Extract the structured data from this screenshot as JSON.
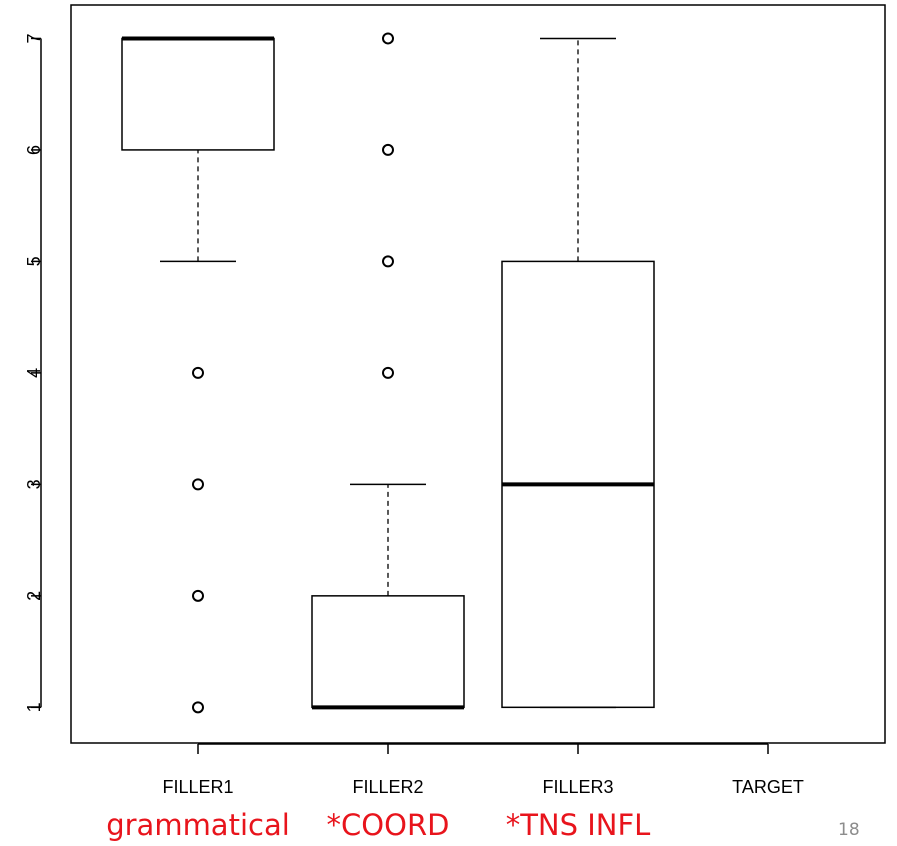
{
  "chart_data": {
    "type": "boxplot",
    "categories": [
      "FILLER1",
      "FILLER2",
      "FILLER3",
      "TARGET"
    ],
    "boxes": [
      {
        "category": "FILLER1",
        "whisker_low": 5,
        "q1": 6,
        "median": 7,
        "q3": 7,
        "whisker_high": 7,
        "outliers": [
          4,
          3,
          2,
          1
        ]
      },
      {
        "category": "FILLER2",
        "whisker_low": 1,
        "q1": 1,
        "median": 1,
        "q3": 2,
        "whisker_high": 3,
        "outliers": [
          7,
          6,
          5,
          4
        ]
      },
      {
        "category": "FILLER3",
        "whisker_low": 1,
        "q1": 1,
        "median": 3,
        "q3": 5,
        "whisker_high": 7,
        "outliers": []
      }
    ],
    "y_ticks": [
      1,
      2,
      3,
      4,
      5,
      6,
      7
    ],
    "ylim": [
      0.68,
      7.3
    ],
    "grid": false,
    "legend": "none"
  },
  "condition_labels": [
    "grammatical",
    "*COORD",
    "*TNS INFL"
  ],
  "slide_number": "18",
  "colors": {
    "condition_label": "#e8141c",
    "slide_number": "#8c8c8c",
    "axis": "#000000"
  }
}
